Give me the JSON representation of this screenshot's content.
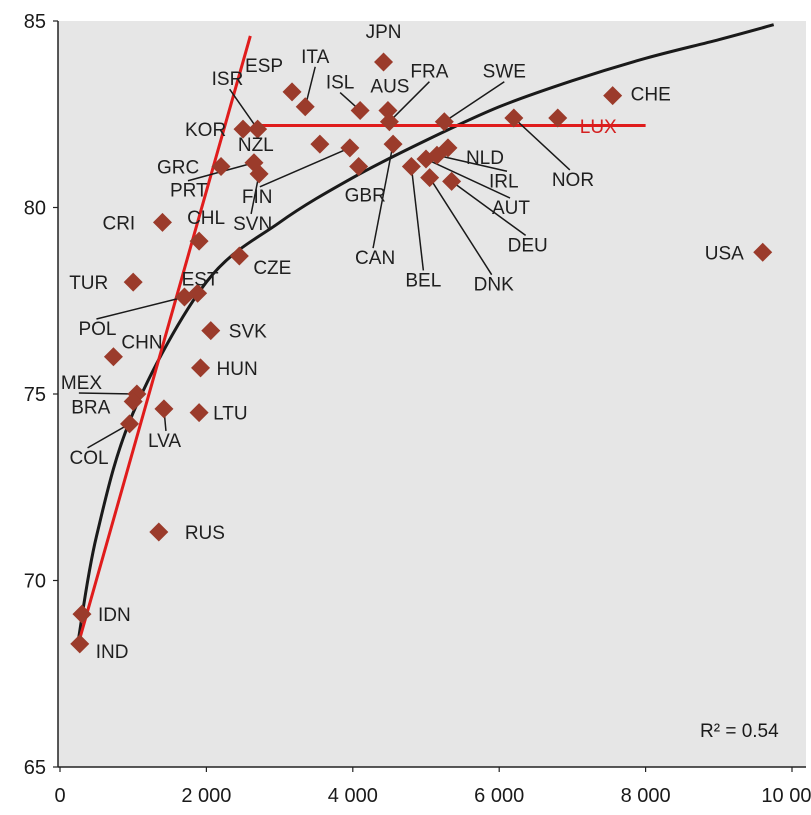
{
  "chart_data": {
    "type": "scatter",
    "xlim": [
      0,
      10000
    ],
    "ylim": [
      65,
      85
    ],
    "x_ticks": [
      0,
      2000,
      4000,
      6000,
      8000,
      10000
    ],
    "x_tick_labels": [
      "0",
      "2 000",
      "4 000",
      "6 000",
      "8 000",
      "10 000"
    ],
    "y_ticks": [
      65,
      70,
      75,
      80,
      85
    ],
    "y_tick_labels": [
      "65",
      "70",
      "75",
      "80",
      "85"
    ],
    "grid": false,
    "background": "#e6e6e6",
    "marker_color": "#9b3b2b",
    "marker_shape": "diamond",
    "annotation": "R² = 0.54",
    "points": [
      {
        "label": "JPN",
        "x": 4420,
        "y": 83.9
      },
      {
        "label": "ITA",
        "x": 3350,
        "y": 82.7
      },
      {
        "label": "ESP",
        "x": 3170,
        "y": 83.1
      },
      {
        "label": "ISL",
        "x": 4100,
        "y": 82.6
      },
      {
        "label": "AUS",
        "x": 4480,
        "y": 82.6
      },
      {
        "label": "FRA",
        "x": 4500,
        "y": 82.3
      },
      {
        "label": "SWE",
        "x": 5250,
        "y": 82.3
      },
      {
        "label": "CHE",
        "x": 7550,
        "y": 83.0
      },
      {
        "label": "ISR",
        "x": 2700,
        "y": 82.1
      },
      {
        "label": "KOR",
        "x": 2500,
        "y": 82.1
      },
      {
        "label": "NZL",
        "x": 3550,
        "y": 81.7
      },
      {
        "label": "GBR",
        "x": 4080,
        "y": 81.1
      },
      {
        "label": "FIN",
        "x": 3960,
        "y": 81.6
      },
      {
        "label": "CAN",
        "x": 4550,
        "y": 81.7
      },
      {
        "label": "NLD",
        "x": 5300,
        "y": 81.6
      },
      {
        "label": "LUX",
        "x": 6800,
        "y": 82.4
      },
      {
        "label": "NOR",
        "x": 6200,
        "y": 82.4
      },
      {
        "label": "IRL",
        "x": 5150,
        "y": 81.4
      },
      {
        "label": "AUT",
        "x": 5000,
        "y": 81.3
      },
      {
        "label": "DEU",
        "x": 5350,
        "y": 80.7
      },
      {
        "label": "BEL",
        "x": 4800,
        "y": 81.1
      },
      {
        "label": "DNK",
        "x": 5050,
        "y": 80.8
      },
      {
        "label": "GRC",
        "x": 2200,
        "y": 81.1
      },
      {
        "label": "PRT",
        "x": 2650,
        "y": 81.2
      },
      {
        "label": "SVN",
        "x": 2720,
        "y": 80.9
      },
      {
        "label": "CHL",
        "x": 1900,
        "y": 79.1
      },
      {
        "label": "CRI",
        "x": 1400,
        "y": 79.6
      },
      {
        "label": "CZE",
        "x": 2450,
        "y": 78.7
      },
      {
        "label": "TUR",
        "x": 1000,
        "y": 78.0
      },
      {
        "label": "EST",
        "x": 1880,
        "y": 77.7
      },
      {
        "label": "POL",
        "x": 1700,
        "y": 77.6
      },
      {
        "label": "SVK",
        "x": 2060,
        "y": 76.7
      },
      {
        "label": "CHN",
        "x": 730,
        "y": 76.0
      },
      {
        "label": "HUN",
        "x": 1920,
        "y": 75.7
      },
      {
        "label": "MEX",
        "x": 1050,
        "y": 75.0
      },
      {
        "label": "BRA",
        "x": 1000,
        "y": 74.8
      },
      {
        "label": "LVA",
        "x": 1420,
        "y": 74.6
      },
      {
        "label": "LTU",
        "x": 1900,
        "y": 74.5
      },
      {
        "label": "COL",
        "x": 950,
        "y": 74.2
      },
      {
        "label": "USA",
        "x": 9600,
        "y": 78.8
      },
      {
        "label": "RUS",
        "x": 1350,
        "y": 71.3
      },
      {
        "label": "IDN",
        "x": 300,
        "y": 69.1
      },
      {
        "label": "IND",
        "x": 270,
        "y": 68.3
      }
    ],
    "curve": [
      {
        "x": 250,
        "y": 68.4
      },
      {
        "x": 500,
        "y": 71.2
      },
      {
        "x": 1000,
        "y": 74.5
      },
      {
        "x": 2000,
        "y": 78.0
      },
      {
        "x": 3000,
        "y": 79.6
      },
      {
        "x": 4000,
        "y": 80.8
      },
      {
        "x": 5000,
        "y": 81.8
      },
      {
        "x": 6000,
        "y": 82.7
      },
      {
        "x": 7000,
        "y": 83.4
      },
      {
        "x": 8000,
        "y": 84.0
      },
      {
        "x": 9000,
        "y": 84.5
      },
      {
        "x": 9750,
        "y": 84.9
      }
    ],
    "red_lines": [
      [
        {
          "x": 250,
          "y": 68.3
        },
        {
          "x": 2600,
          "y": 84.6
        }
      ],
      [
        {
          "x": 2650,
          "y": 82.2
        },
        {
          "x": 8000,
          "y": 82.2
        }
      ]
    ],
    "red_color": "#e01c1c"
  }
}
